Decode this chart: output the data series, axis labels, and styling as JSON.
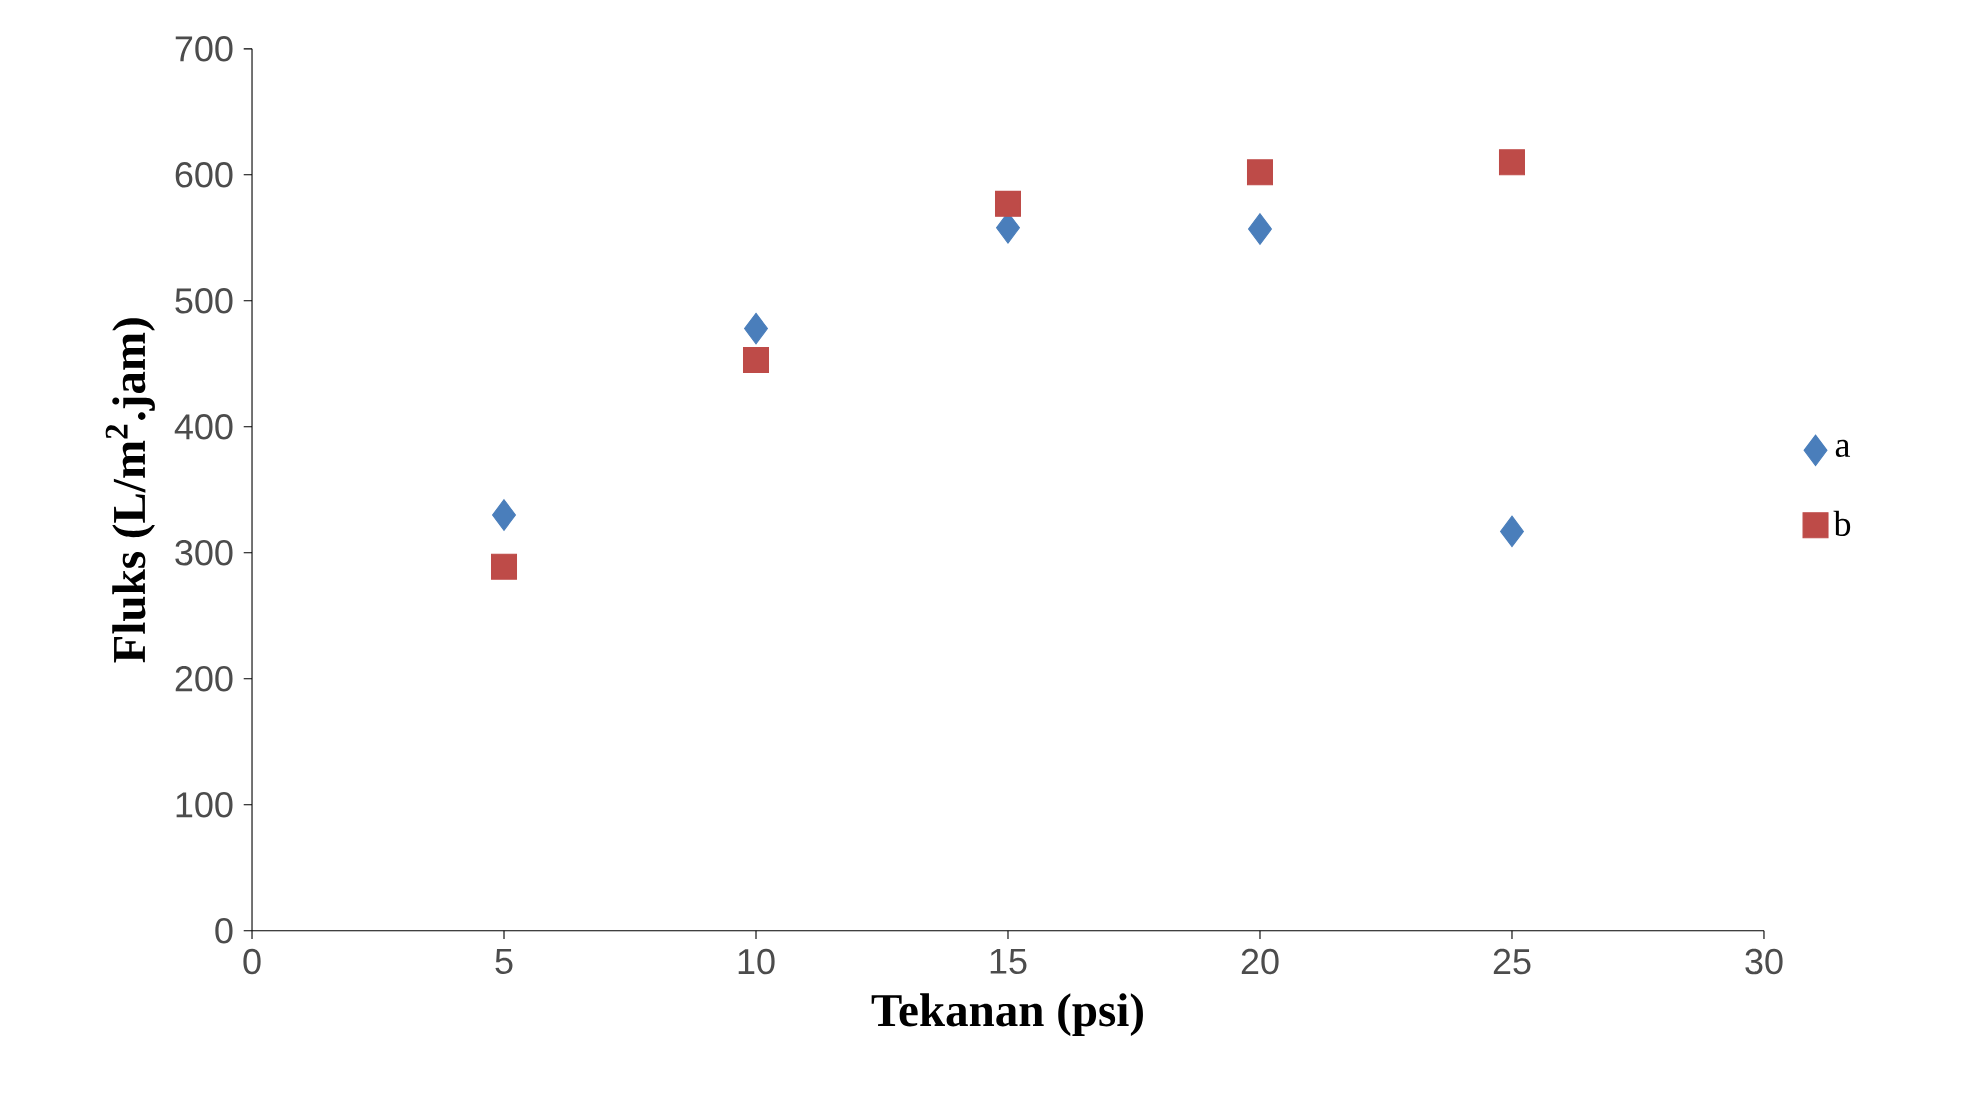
{
  "chart_data": {
    "type": "scatter",
    "xlabel": "Tekanan (psi)",
    "ylabel": "Fluks (L/m$^{2}$.jam)",
    "x": [
      5,
      10,
      15,
      20,
      25
    ],
    "series": [
      {
        "name": "a",
        "color": "#4a7ebb",
        "marker": "diamond",
        "values": [
          330,
          478,
          558,
          557,
          317
        ]
      },
      {
        "name": "b",
        "color": "#be4b48",
        "marker": "square",
        "values": [
          289,
          453,
          577,
          602,
          610
        ]
      }
    ],
    "xlim": [
      0,
      30
    ],
    "ylim": [
      0,
      700
    ],
    "xticks": [
      0,
      5,
      10,
      15,
      20,
      25,
      30
    ],
    "yticks": [
      0,
      100,
      200,
      300,
      400,
      500,
      600,
      700
    ],
    "grid": false,
    "legend": "right"
  }
}
